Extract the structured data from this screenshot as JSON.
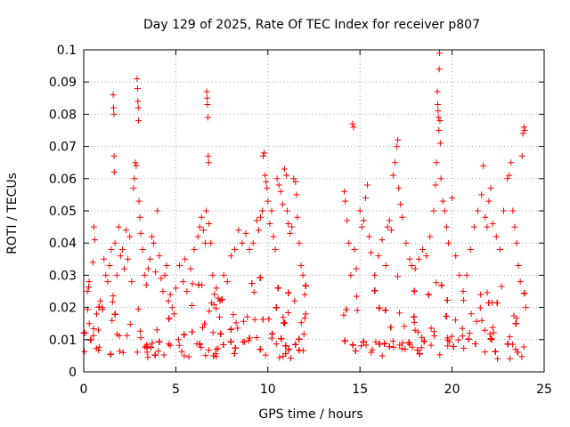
{
  "chart_data": {
    "type": "scatter",
    "title": "Day 129 of 2025, Rate Of TEC Index for receiver p807",
    "xlabel": "GPS time / hours",
    "ylabel": "ROTI / TECUs",
    "xlim": [
      0,
      25
    ],
    "ylim": [
      0,
      0.1
    ],
    "xticks": [
      0,
      5,
      10,
      15,
      20,
      25
    ],
    "yticks": [
      0,
      0.01,
      0.02,
      0.03,
      0.04,
      0.05,
      0.06,
      0.07,
      0.08,
      0.09,
      0.1
    ],
    "xtick_labels": [
      "0",
      "5",
      "10",
      "15",
      "20",
      "25"
    ],
    "ytick_labels": [
      "0",
      "0.01",
      "0.02",
      "0.03",
      "0.04",
      "0.05",
      "0.06",
      "0.07",
      "0.08",
      "0.09",
      "0.1"
    ],
    "grid": true,
    "marker": "+",
    "color": "#ff0000",
    "data_gap_hours": [
      12.1,
      14.1
    ],
    "points": [
      [
        0.1,
        0.012
      ],
      [
        0.2,
        0.025
      ],
      [
        0.3,
        0.015
      ],
      [
        0.4,
        0.01
      ],
      [
        0.5,
        0.034
      ],
      [
        0.55,
        0.045
      ],
      [
        0.6,
        0.041
      ],
      [
        0.7,
        0.018
      ],
      [
        0.8,
        0.013
      ],
      [
        0.9,
        0.022
      ],
      [
        1.0,
        0.02
      ],
      [
        1.1,
        0.035
      ],
      [
        1.2,
        0.03
      ],
      [
        1.3,
        0.028
      ],
      [
        1.4,
        0.033
      ],
      [
        1.5,
        0.038
      ],
      [
        1.6,
        0.086
      ],
      [
        1.62,
        0.082
      ],
      [
        1.64,
        0.08
      ],
      [
        1.65,
        0.067
      ],
      [
        1.66,
        0.062
      ],
      [
        1.7,
        0.04
      ],
      [
        1.8,
        0.03
      ],
      [
        1.9,
        0.045
      ],
      [
        2.0,
        0.036
      ],
      [
        2.1,
        0.038
      ],
      [
        2.2,
        0.032
      ],
      [
        2.3,
        0.044
      ],
      [
        2.4,
        0.035
      ],
      [
        2.5,
        0.042
      ],
      [
        2.6,
        0.028
      ],
      [
        2.7,
        0.057
      ],
      [
        2.75,
        0.06
      ],
      [
        2.8,
        0.065
      ],
      [
        2.85,
        0.064
      ],
      [
        2.9,
        0.091
      ],
      [
        2.92,
        0.088
      ],
      [
        2.94,
        0.084
      ],
      [
        2.96,
        0.082
      ],
      [
        2.98,
        0.078
      ],
      [
        3.0,
        0.053
      ],
      [
        3.05,
        0.048
      ],
      [
        3.1,
        0.043
      ],
      [
        3.2,
        0.038
      ],
      [
        3.3,
        0.03
      ],
      [
        3.4,
        0.027
      ],
      [
        3.5,
        0.032
      ],
      [
        3.6,
        0.035
      ],
      [
        3.7,
        0.042
      ],
      [
        3.8,
        0.04
      ],
      [
        3.9,
        0.031
      ],
      [
        4.0,
        0.05
      ],
      [
        4.1,
        0.036
      ],
      [
        4.2,
        0.029
      ],
      [
        4.3,
        0.025
      ],
      [
        4.4,
        0.03
      ],
      [
        4.5,
        0.033
      ],
      [
        4.6,
        0.022
      ],
      [
        4.7,
        0.024
      ],
      [
        4.8,
        0.02
      ],
      [
        4.9,
        0.018
      ],
      [
        5.0,
        0.026
      ],
      [
        5.2,
        0.033
      ],
      [
        5.4,
        0.028
      ],
      [
        5.5,
        0.035
      ],
      [
        5.6,
        0.025
      ],
      [
        5.8,
        0.032
      ],
      [
        6.0,
        0.038
      ],
      [
        6.2,
        0.042
      ],
      [
        6.3,
        0.045
      ],
      [
        6.4,
        0.048
      ],
      [
        6.5,
        0.044
      ],
      [
        6.6,
        0.04
      ],
      [
        6.65,
        0.05
      ],
      [
        6.68,
        0.087
      ],
      [
        6.7,
        0.085
      ],
      [
        6.72,
        0.083
      ],
      [
        6.74,
        0.079
      ],
      [
        6.76,
        0.067
      ],
      [
        6.78,
        0.065
      ],
      [
        6.8,
        0.046
      ],
      [
        6.9,
        0.04
      ],
      [
        7.0,
        0.03
      ],
      [
        7.2,
        0.026
      ],
      [
        7.4,
        0.022
      ],
      [
        7.6,
        0.03
      ],
      [
        7.8,
        0.028
      ],
      [
        8.0,
        0.036
      ],
      [
        8.2,
        0.038
      ],
      [
        8.4,
        0.044
      ],
      [
        8.6,
        0.04
      ],
      [
        8.8,
        0.043
      ],
      [
        9.0,
        0.038
      ],
      [
        9.2,
        0.04
      ],
      [
        9.4,
        0.047
      ],
      [
        9.5,
        0.044
      ],
      [
        9.6,
        0.048
      ],
      [
        9.7,
        0.05
      ],
      [
        9.75,
        0.067
      ],
      [
        9.8,
        0.068
      ],
      [
        9.85,
        0.061
      ],
      [
        9.9,
        0.059
      ],
      [
        9.95,
        0.057
      ],
      [
        10.0,
        0.053
      ],
      [
        10.1,
        0.046
      ],
      [
        10.2,
        0.05
      ],
      [
        10.3,
        0.042
      ],
      [
        10.4,
        0.038
      ],
      [
        10.5,
        0.06
      ],
      [
        10.6,
        0.058
      ],
      [
        10.7,
        0.056
      ],
      [
        10.8,
        0.052
      ],
      [
        10.9,
        0.063
      ],
      [
        11.0,
        0.061
      ],
      [
        11.05,
        0.05
      ],
      [
        11.1,
        0.046
      ],
      [
        11.2,
        0.043
      ],
      [
        11.3,
        0.045
      ],
      [
        11.4,
        0.06
      ],
      [
        11.5,
        0.059
      ],
      [
        11.55,
        0.055
      ],
      [
        11.6,
        0.048
      ],
      [
        11.7,
        0.04
      ],
      [
        11.8,
        0.033
      ],
      [
        11.9,
        0.03
      ],
      [
        12.0,
        0.024
      ],
      [
        12.05,
        0.018
      ],
      [
        14.15,
        0.056
      ],
      [
        14.2,
        0.053
      ],
      [
        14.3,
        0.047
      ],
      [
        14.4,
        0.04
      ],
      [
        14.5,
        0.03
      ],
      [
        14.6,
        0.077
      ],
      [
        14.65,
        0.076
      ],
      [
        14.7,
        0.038
      ],
      [
        14.8,
        0.032
      ],
      [
        15.0,
        0.05
      ],
      [
        15.1,
        0.045
      ],
      [
        15.2,
        0.047
      ],
      [
        15.3,
        0.054
      ],
      [
        15.4,
        0.058
      ],
      [
        15.5,
        0.042
      ],
      [
        15.6,
        0.037
      ],
      [
        15.8,
        0.03
      ],
      [
        16.0,
        0.036
      ],
      [
        16.2,
        0.041
      ],
      [
        16.4,
        0.033
      ],
      [
        16.5,
        0.045
      ],
      [
        16.6,
        0.047
      ],
      [
        16.7,
        0.044
      ],
      [
        16.8,
        0.061
      ],
      [
        16.9,
        0.065
      ],
      [
        17.0,
        0.07
      ],
      [
        17.05,
        0.072
      ],
      [
        17.1,
        0.057
      ],
      [
        17.2,
        0.052
      ],
      [
        17.3,
        0.048
      ],
      [
        17.5,
        0.04
      ],
      [
        17.7,
        0.035
      ],
      [
        17.8,
        0.033
      ],
      [
        18.0,
        0.032
      ],
      [
        18.2,
        0.035
      ],
      [
        18.4,
        0.038
      ],
      [
        18.6,
        0.036
      ],
      [
        18.8,
        0.042
      ],
      [
        19.0,
        0.05
      ],
      [
        19.1,
        0.058
      ],
      [
        19.15,
        0.065
      ],
      [
        19.2,
        0.087
      ],
      [
        19.22,
        0.083
      ],
      [
        19.24,
        0.081
      ],
      [
        19.26,
        0.079
      ],
      [
        19.28,
        0.075
      ],
      [
        19.3,
        0.094
      ],
      [
        19.32,
        0.099
      ],
      [
        19.34,
        0.078
      ],
      [
        19.36,
        0.071
      ],
      [
        19.4,
        0.06
      ],
      [
        19.5,
        0.053
      ],
      [
        19.6,
        0.05
      ],
      [
        19.7,
        0.045
      ],
      [
        19.8,
        0.04
      ],
      [
        20.0,
        0.054
      ],
      [
        20.2,
        0.036
      ],
      [
        20.4,
        0.03
      ],
      [
        20.6,
        0.025
      ],
      [
        20.8,
        0.03
      ],
      [
        21.0,
        0.038
      ],
      [
        21.2,
        0.045
      ],
      [
        21.4,
        0.05
      ],
      [
        21.6,
        0.055
      ],
      [
        21.7,
        0.064
      ],
      [
        21.8,
        0.048
      ],
      [
        21.9,
        0.045
      ],
      [
        22.0,
        0.053
      ],
      [
        22.1,
        0.057
      ],
      [
        22.2,
        0.046
      ],
      [
        22.4,
        0.042
      ],
      [
        22.6,
        0.038
      ],
      [
        22.8,
        0.05
      ],
      [
        23.0,
        0.06
      ],
      [
        23.1,
        0.061
      ],
      [
        23.2,
        0.065
      ],
      [
        23.3,
        0.05
      ],
      [
        23.4,
        0.045
      ],
      [
        23.5,
        0.04
      ],
      [
        23.6,
        0.033
      ],
      [
        23.7,
        0.028
      ],
      [
        23.8,
        0.067
      ],
      [
        23.85,
        0.074
      ],
      [
        23.9,
        0.076
      ],
      [
        23.95,
        0.075
      ],
      [
        24.0,
        0.02
      ]
    ]
  }
}
